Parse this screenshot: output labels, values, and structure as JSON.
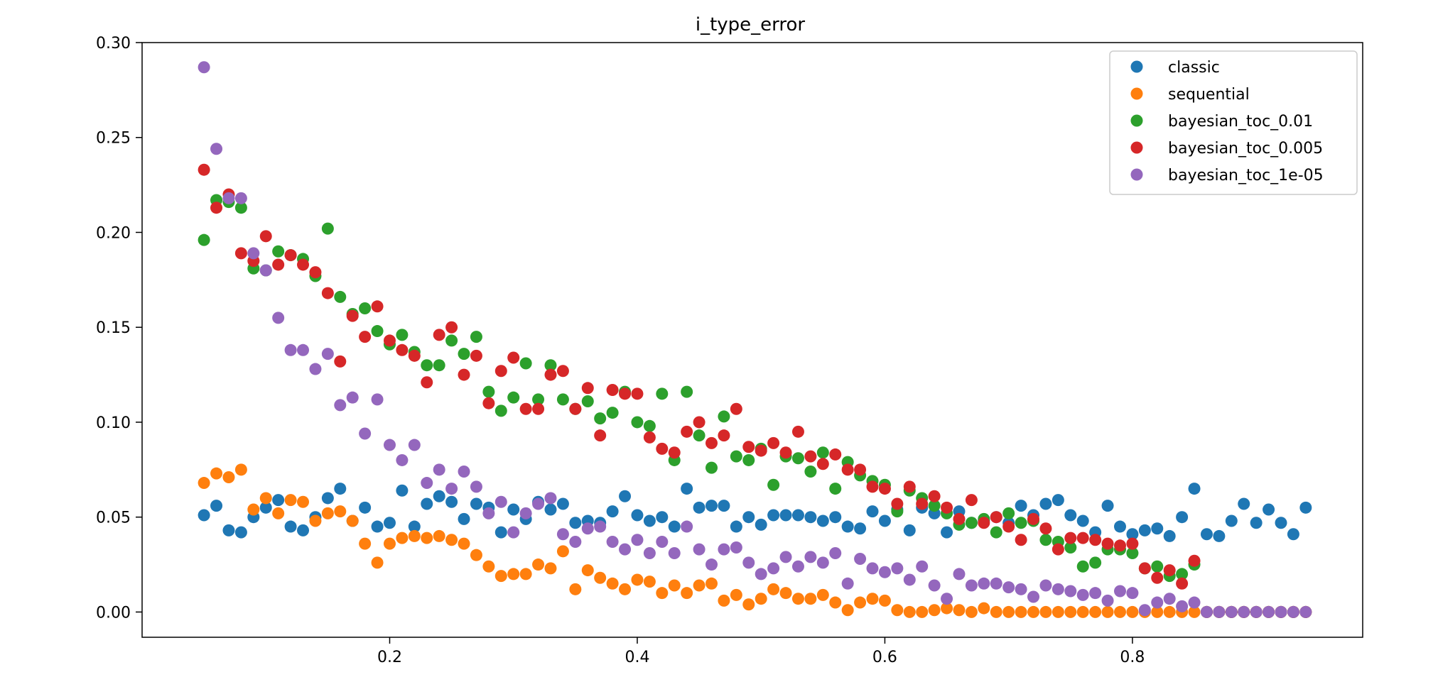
{
  "chart_data": {
    "type": "scatter",
    "title": "i_type_error",
    "xlabel": "",
    "ylabel": "",
    "xlim": [
      0.0,
      0.986
    ],
    "ylim": [
      -0.0133,
      0.3
    ],
    "x_ticks": [
      "0.2",
      "0.4",
      "0.6",
      "0.8"
    ],
    "y_ticks": [
      "0.00",
      "0.05",
      "0.10",
      "0.15",
      "0.20",
      "0.25",
      "0.30"
    ],
    "grid": false,
    "legend_position": "top-right",
    "x": [
      0.05,
      0.06,
      0.07,
      0.08,
      0.09,
      0.1,
      0.11,
      0.12,
      0.13,
      0.14,
      0.15,
      0.16,
      0.17,
      0.18,
      0.19,
      0.2,
      0.21,
      0.22,
      0.23,
      0.24,
      0.25,
      0.26,
      0.27,
      0.28,
      0.29,
      0.3,
      0.31,
      0.32,
      0.33,
      0.34,
      0.35,
      0.36,
      0.37,
      0.38,
      0.39,
      0.4,
      0.41,
      0.42,
      0.43,
      0.44,
      0.45,
      0.46,
      0.47,
      0.48,
      0.49,
      0.5,
      0.51,
      0.52,
      0.53,
      0.54,
      0.55,
      0.56,
      0.57,
      0.58,
      0.59,
      0.6,
      0.61,
      0.62,
      0.63,
      0.64,
      0.65,
      0.66,
      0.67,
      0.68,
      0.69,
      0.7,
      0.71,
      0.72,
      0.73,
      0.74,
      0.75,
      0.76,
      0.77,
      0.78,
      0.79,
      0.8,
      0.81,
      0.82,
      0.83,
      0.84,
      0.85,
      0.86,
      0.87,
      0.88,
      0.89,
      0.9,
      0.91,
      0.92,
      0.93,
      0.94
    ],
    "series": [
      {
        "name": "classic",
        "color": "#1f77b4",
        "values": [
          0.051,
          0.056,
          0.043,
          0.042,
          0.05,
          0.055,
          0.059,
          0.045,
          0.043,
          0.05,
          0.06,
          0.065,
          0.048,
          0.055,
          0.045,
          0.047,
          0.064,
          0.045,
          0.057,
          0.061,
          0.058,
          0.049,
          0.057,
          0.055,
          0.042,
          0.054,
          0.049,
          0.058,
          0.054,
          0.057,
          0.047,
          0.048,
          0.047,
          0.053,
          0.061,
          0.051,
          0.048,
          0.05,
          0.045,
          0.065,
          0.055,
          0.056,
          0.056,
          0.045,
          0.05,
          0.046,
          0.051,
          0.051,
          0.051,
          0.05,
          0.048,
          0.05,
          0.045,
          0.044,
          0.053,
          0.048,
          0.054,
          0.043,
          0.055,
          0.052,
          0.042,
          0.053,
          0.047,
          0.048,
          0.05,
          0.047,
          0.056,
          0.051,
          0.057,
          0.059,
          0.051,
          0.048,
          0.042,
          0.056,
          0.045,
          0.041,
          0.043,
          0.044,
          0.04,
          0.05,
          0.065,
          0.041,
          0.04,
          0.048,
          0.057,
          0.047,
          0.054,
          0.047,
          0.041,
          0.055
        ]
      },
      {
        "name": "sequential",
        "color": "#ff7f0e",
        "values": [
          0.068,
          0.073,
          0.071,
          0.075,
          0.054,
          0.06,
          0.052,
          0.059,
          0.058,
          0.048,
          0.052,
          0.053,
          0.048,
          0.036,
          0.026,
          0.036,
          0.039,
          0.04,
          0.039,
          0.04,
          0.038,
          0.036,
          0.03,
          0.024,
          0.019,
          0.02,
          0.02,
          0.025,
          0.023,
          0.032,
          0.012,
          0.022,
          0.018,
          0.015,
          0.012,
          0.017,
          0.016,
          0.01,
          0.014,
          0.01,
          0.014,
          0.015,
          0.006,
          0.009,
          0.004,
          0.007,
          0.012,
          0.01,
          0.007,
          0.007,
          0.009,
          0.005,
          0.001,
          0.005,
          0.007,
          0.006,
          0.001,
          0.0,
          0.0,
          0.001,
          0.002,
          0.001,
          0.0,
          0.002,
          0.0,
          0.0,
          0.0,
          0.0,
          0.0,
          0.0,
          0.0,
          0.0,
          0.0,
          0.0,
          0.0,
          0.0,
          0.0,
          0.0,
          0.0,
          0.0,
          0.0,
          0.0,
          0.0,
          0.0,
          0.0,
          0.0,
          0.0,
          0.0,
          0.0,
          0.0
        ]
      },
      {
        "name": "bayesian_toc_0.01",
        "color": "#2ca02c",
        "values": [
          0.196,
          0.217,
          0.216,
          0.213,
          0.181,
          0.18,
          0.19,
          0.188,
          0.186,
          0.177,
          0.202,
          0.166,
          0.157,
          0.16,
          0.148,
          0.141,
          0.146,
          0.137,
          0.13,
          0.13,
          0.143,
          0.136,
          0.145,
          0.116,
          0.106,
          0.113,
          0.131,
          0.112,
          0.13,
          0.112,
          0.107,
          0.111,
          0.102,
          0.105,
          0.116,
          0.1,
          0.098,
          0.115,
          0.08,
          0.116,
          0.093,
          0.076,
          0.103,
          0.082,
          0.08,
          0.086,
          0.067,
          0.082,
          0.081,
          0.074,
          0.084,
          0.065,
          0.079,
          0.072,
          0.069,
          0.067,
          0.053,
          0.064,
          0.06,
          0.056,
          0.052,
          0.046,
          0.047,
          0.049,
          0.042,
          0.052,
          0.047,
          0.048,
          0.038,
          0.037,
          0.034,
          0.024,
          0.026,
          0.033,
          0.033,
          0.031,
          0.023,
          0.024,
          0.019,
          0.02,
          0.025,
          0.0,
          0.0,
          0.0,
          0.0,
          0.0,
          0.0,
          0.0,
          0.0,
          0.0
        ]
      },
      {
        "name": "bayesian_toc_0.005",
        "color": "#d62728",
        "values": [
          0.233,
          0.213,
          0.22,
          0.189,
          0.185,
          0.198,
          0.183,
          0.188,
          0.183,
          0.179,
          0.168,
          0.132,
          0.156,
          0.145,
          0.161,
          0.143,
          0.138,
          0.135,
          0.121,
          0.146,
          0.15,
          0.125,
          0.135,
          0.11,
          0.127,
          0.134,
          0.107,
          0.107,
          0.125,
          0.127,
          0.107,
          0.118,
          0.093,
          0.117,
          0.115,
          0.115,
          0.092,
          0.086,
          0.084,
          0.095,
          0.1,
          0.089,
          0.093,
          0.107,
          0.087,
          0.085,
          0.089,
          0.084,
          0.095,
          0.082,
          0.078,
          0.083,
          0.075,
          0.075,
          0.066,
          0.065,
          0.057,
          0.066,
          0.057,
          0.061,
          0.055,
          0.049,
          0.059,
          0.047,
          0.05,
          0.045,
          0.038,
          0.049,
          0.044,
          0.033,
          0.039,
          0.039,
          0.038,
          0.036,
          0.035,
          0.036,
          0.023,
          0.018,
          0.022,
          0.015,
          0.027,
          0.0,
          0.0,
          0.0,
          0.0,
          0.0,
          0.0,
          0.0,
          0.0,
          0.0
        ]
      },
      {
        "name": "bayesian_toc_1e-05",
        "color": "#9467bd",
        "values": [
          0.287,
          0.244,
          0.218,
          0.218,
          0.189,
          0.18,
          0.155,
          0.138,
          0.138,
          0.128,
          0.136,
          0.109,
          0.113,
          0.094,
          0.112,
          0.088,
          0.08,
          0.088,
          0.068,
          0.075,
          0.065,
          0.074,
          0.066,
          0.052,
          0.058,
          0.042,
          0.052,
          0.057,
          0.06,
          0.041,
          0.037,
          0.044,
          0.045,
          0.037,
          0.033,
          0.038,
          0.031,
          0.037,
          0.031,
          0.045,
          0.033,
          0.025,
          0.033,
          0.034,
          0.026,
          0.02,
          0.023,
          0.029,
          0.024,
          0.029,
          0.026,
          0.031,
          0.015,
          0.028,
          0.023,
          0.021,
          0.023,
          0.017,
          0.024,
          0.014,
          0.007,
          0.02,
          0.014,
          0.015,
          0.015,
          0.013,
          0.012,
          0.008,
          0.014,
          0.012,
          0.011,
          0.009,
          0.01,
          0.006,
          0.011,
          0.01,
          0.001,
          0.005,
          0.007,
          0.003,
          0.005,
          0.0,
          0.0,
          0.0,
          0.0,
          0.0,
          0.0,
          0.0,
          0.0,
          0.0
        ]
      }
    ]
  }
}
